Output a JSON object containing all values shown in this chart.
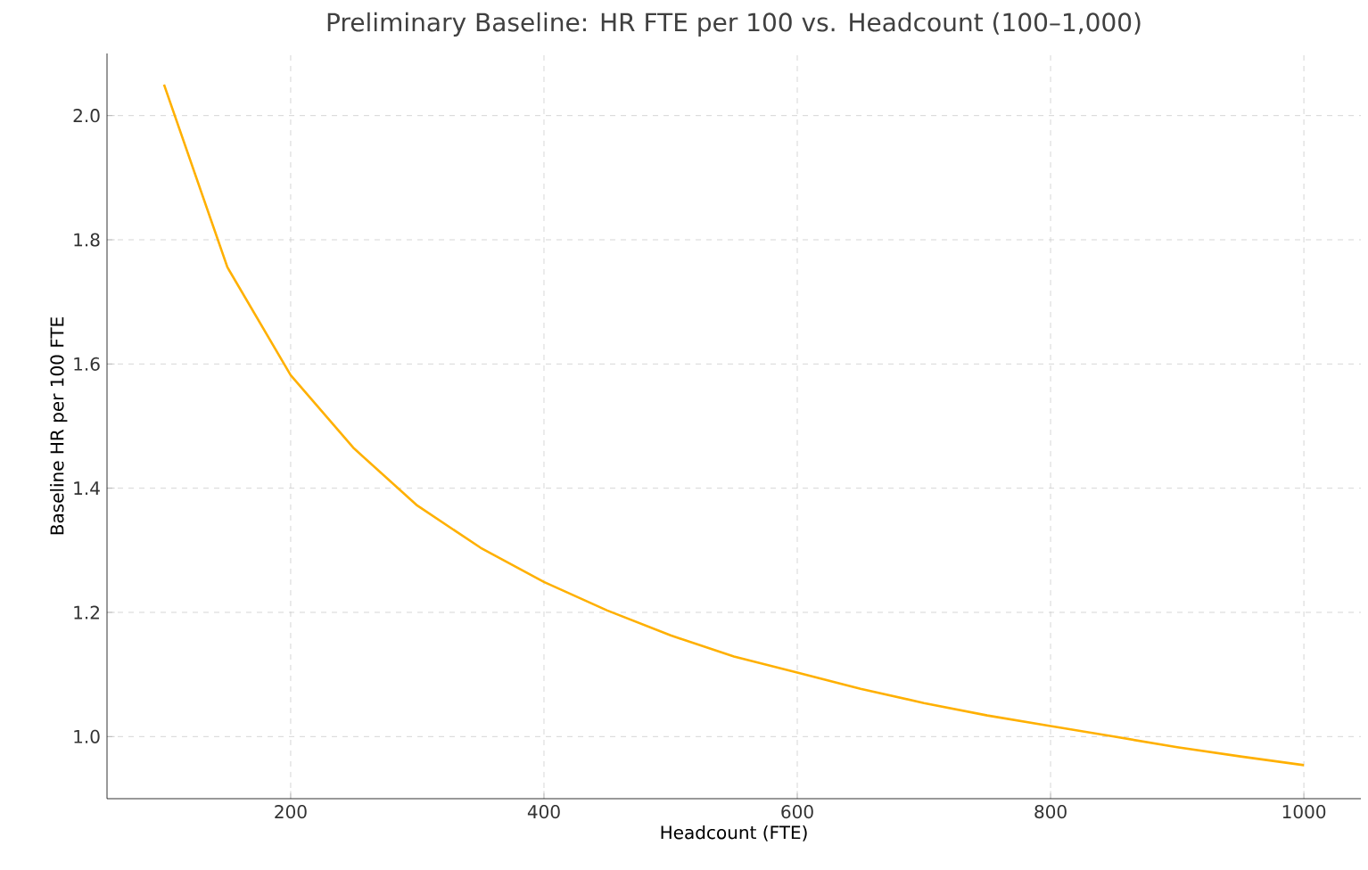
{
  "chart_data": {
    "type": "line",
    "title": "Preliminary Baseline: HR FTE per 100 vs. Headcount (100–1,000)",
    "xlabel": "Headcount (FTE)",
    "ylabel": "Baseline HR per 100 FTE",
    "x": [
      100,
      150,
      200,
      250,
      300,
      350,
      400,
      450,
      500,
      550,
      600,
      650,
      700,
      750,
      800,
      850,
      900,
      950,
      1000
    ],
    "series": [
      {
        "color": "#ffb000",
        "values": [
          2.05,
          1.756,
          1.582,
          1.464,
          1.372,
          1.304,
          1.249,
          1.203,
          1.163,
          1.129,
          1.103,
          1.077,
          1.054,
          1.034,
          1.017,
          1.0,
          0.983,
          0.968,
          0.954
        ]
      }
    ],
    "xlim": [
      55,
      1045
    ],
    "ylim": [
      0.9,
      2.1
    ],
    "xticks": [
      200,
      400,
      600,
      800,
      1000
    ],
    "yticks": [
      {
        "value": 1,
        "label": "1.0"
      },
      1.2,
      1.4,
      1.6,
      1.8,
      {
        "value": 2,
        "label": "2.0"
      }
    ],
    "grid": true,
    "marker": "none",
    "line_style": "solid"
  }
}
